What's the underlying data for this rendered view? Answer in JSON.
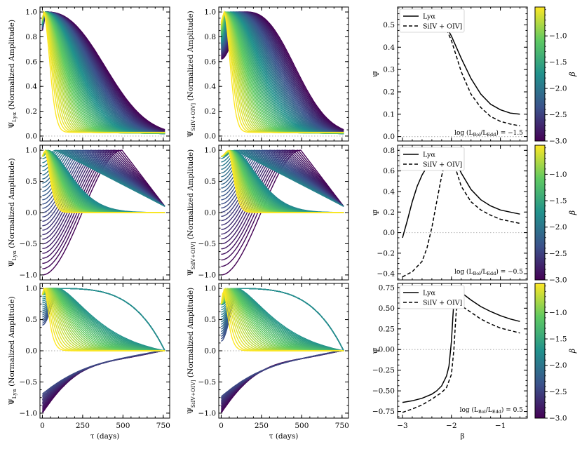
{
  "figure": {
    "description_free": true,
    "colormap": [
      "#440154",
      "#3b528b",
      "#21918c",
      "#5ec962",
      "#fde725"
    ]
  },
  "chart_data": [
    {
      "type": "line",
      "id": "lya_low",
      "ylabel": "Ψ_Lyα (Normalized Amplitude)",
      "ylabel_main": "Ψ",
      "ylabel_sub": "Lyα",
      "ylabel_rest": " (Normalized Amplitude)",
      "xlim": [
        -15,
        790
      ],
      "ylim": [
        -0.04,
        1.04
      ],
      "yticks": [
        0.0,
        0.2,
        0.4,
        0.6,
        0.8,
        1.0
      ],
      "yticklabels": [
        "0.0",
        "0.2",
        "0.4",
        "0.6",
        "0.8",
        "1.0"
      ],
      "xticks": [
        0,
        250,
        500,
        750
      ],
      "xticklabels": [
        "",
        "",
        "",
        ""
      ],
      "curve_model": "family_low",
      "n_curves": 60,
      "x_range_days": [
        0,
        760
      ]
    },
    {
      "type": "line",
      "id": "siiv_low",
      "ylabel": "Ψ_SiIV+OIV] (Normalized Amplitude)",
      "ylabel_main": "Ψ",
      "ylabel_sub": "SiIV+OIV]",
      "ylabel_rest": " (Normalized Amplitude)",
      "xlim": [
        -15,
        790
      ],
      "ylim": [
        -0.04,
        1.04
      ],
      "yticks": [
        0.0,
        0.2,
        0.4,
        0.6,
        0.8,
        1.0
      ],
      "yticklabels": [
        "0.0",
        "0.2",
        "0.4",
        "0.6",
        "0.8",
        "1.0"
      ],
      "xticks": [
        0,
        250,
        500,
        750
      ],
      "xticklabels": [
        "",
        "",
        "",
        ""
      ],
      "curve_model": "family_low_siiv",
      "n_curves": 60,
      "x_range_days": [
        0,
        760
      ]
    },
    {
      "type": "line",
      "id": "mean_low",
      "ylabel": "Ψ̄",
      "xlim": [
        -3.1,
        -0.45
      ],
      "ylim": [
        -0.02,
        0.58
      ],
      "yticks": [
        0.0,
        0.1,
        0.2,
        0.3,
        0.4,
        0.5
      ],
      "yticklabels": [
        "0.0",
        "0.1",
        "0.2",
        "0.3",
        "0.4",
        "0.5"
      ],
      "xticks": [
        -3,
        -2,
        -1
      ],
      "xticklabels": [
        "",
        "",
        ""
      ],
      "legend": [
        "Lyα",
        "SiIV + OIV]"
      ],
      "legend_loc": "top-left",
      "annotation": "log (L_Bol/L_Edd) = −1.5",
      "annot_main": "log (L",
      "annot_sub1": "Bol",
      "annot_mid": "/L",
      "annot_sub2": "Edd",
      "annot_end": ") = −1.5",
      "series": [
        {
          "name": "Lyα",
          "style": "solid",
          "x": [
            -3.0,
            -2.8,
            -2.6,
            -2.4,
            -2.2,
            -2.1,
            -2.0,
            -1.9,
            -1.8,
            -1.6,
            -1.4,
            -1.2,
            -1.0,
            -0.8,
            -0.6
          ],
          "y": [
            0.56,
            0.56,
            0.56,
            0.55,
            0.52,
            0.49,
            0.45,
            0.4,
            0.35,
            0.26,
            0.19,
            0.145,
            0.12,
            0.105,
            0.1
          ]
        },
        {
          "name": "SiIV + OIV]",
          "style": "dashed",
          "x": [
            -3.0,
            -2.8,
            -2.6,
            -2.4,
            -2.2,
            -2.1,
            -2.0,
            -1.9,
            -1.8,
            -1.6,
            -1.4,
            -1.2,
            -1.0,
            -0.8,
            -0.6
          ],
          "y": [
            0.565,
            0.56,
            0.555,
            0.54,
            0.51,
            0.48,
            0.43,
            0.36,
            0.29,
            0.19,
            0.13,
            0.09,
            0.068,
            0.056,
            0.048
          ]
        }
      ]
    },
    {
      "type": "line",
      "id": "lya_mid",
      "ylabel": "Ψ_Lyα (Normalized Amplitude)",
      "ylabel_main": "Ψ",
      "ylabel_sub": "Lyα",
      "ylabel_rest": " (Normalized Amplitude)",
      "xlim": [
        -15,
        790
      ],
      "ylim": [
        -1.08,
        1.08
      ],
      "yticks": [
        -1.0,
        -0.5,
        0.0,
        0.5,
        1.0
      ],
      "yticklabels": [
        "−1.0",
        "−0.5",
        "0.0",
        "0.5",
        "1.0"
      ],
      "xticks": [
        0,
        250,
        500,
        750
      ],
      "xticklabels": [
        "",
        "",
        "",
        ""
      ],
      "curve_model": "family_mid",
      "n_curves": 60,
      "x_range_days": [
        0,
        760
      ]
    },
    {
      "type": "line",
      "id": "siiv_mid",
      "ylabel": "Ψ_SiIV+OIV] (Normalized Amplitude)",
      "ylabel_main": "Ψ",
      "ylabel_sub": "SiIV+OIV]",
      "ylabel_rest": " (Normalized Amplitude)",
      "xlim": [
        -15,
        790
      ],
      "ylim": [
        -1.08,
        1.08
      ],
      "yticks": [
        -1.0,
        -0.5,
        0.0,
        0.5,
        1.0
      ],
      "yticklabels": [
        "−1.0",
        "−0.5",
        "0.0",
        "0.5",
        "1.0"
      ],
      "xticks": [
        0,
        250,
        500,
        750
      ],
      "xticklabels": [
        "",
        "",
        "",
        ""
      ],
      "curve_model": "family_mid_siiv",
      "n_curves": 60,
      "x_range_days": [
        0,
        760
      ]
    },
    {
      "type": "line",
      "id": "mean_mid",
      "ylabel": "Ψ̄",
      "xlim": [
        -3.1,
        -0.45
      ],
      "ylim": [
        -0.46,
        0.85
      ],
      "yticks": [
        -0.4,
        -0.2,
        0.0,
        0.2,
        0.4,
        0.6,
        0.8
      ],
      "yticklabels": [
        "−0.4",
        "−0.2",
        "0.0",
        "0.2",
        "0.4",
        "0.6",
        "0.8"
      ],
      "xticks": [
        -3,
        -2,
        -1
      ],
      "xticklabels": [
        "",
        "",
        ""
      ],
      "legend": [
        "Lyα",
        "SiIV + OIV]"
      ],
      "legend_loc": "top-left",
      "annotation": "log (L_Bol/L_Edd) = −0.5",
      "annot_main": "log (L",
      "annot_sub1": "Bol",
      "annot_mid": "/L",
      "annot_sub2": "Edd",
      "annot_end": ") = −0.5",
      "series": [
        {
          "name": "Lyα",
          "style": "solid",
          "x": [
            -3.0,
            -2.9,
            -2.8,
            -2.7,
            -2.6,
            -2.5,
            -2.4,
            -2.3,
            -2.2,
            -2.1,
            -2.0,
            -1.9,
            -1.8,
            -1.6,
            -1.4,
            -1.2,
            -1.0,
            -0.8,
            -0.6
          ],
          "y": [
            -0.05,
            0.12,
            0.3,
            0.45,
            0.56,
            0.64,
            0.7,
            0.74,
            0.78,
            0.8,
            0.77,
            0.68,
            0.58,
            0.42,
            0.32,
            0.26,
            0.22,
            0.2,
            0.18
          ]
        },
        {
          "name": "SiIV + OIV]",
          "style": "dashed",
          "x": [
            -3.0,
            -2.8,
            -2.6,
            -2.5,
            -2.4,
            -2.3,
            -2.2,
            -2.1,
            -2.05,
            -2.0,
            -1.95,
            -1.9,
            -1.8,
            -1.6,
            -1.4,
            -1.2,
            -1.0,
            -0.8,
            -0.6
          ],
          "y": [
            -0.43,
            -0.38,
            -0.28,
            -0.15,
            0.05,
            0.3,
            0.55,
            0.74,
            0.8,
            0.78,
            0.7,
            0.6,
            0.45,
            0.3,
            0.22,
            0.17,
            0.13,
            0.11,
            0.09
          ]
        }
      ]
    },
    {
      "type": "line",
      "id": "lya_high",
      "ylabel": "Ψ_Lyα (Normalized Amplitude)",
      "ylabel_main": "Ψ",
      "ylabel_sub": "Lyα",
      "ylabel_rest": " (Normalized Amplitude)",
      "xlabel": "τ (days)",
      "xlim": [
        -15,
        790
      ],
      "ylim": [
        -1.08,
        1.08
      ],
      "yticks": [
        -1.0,
        -0.5,
        0.0,
        0.5,
        1.0
      ],
      "yticklabels": [
        "−1.0",
        "−0.5",
        "0.0",
        "0.5",
        "1.0"
      ],
      "xticks": [
        0,
        250,
        500,
        750
      ],
      "xticklabels": [
        "0",
        "250",
        "500",
        "750"
      ],
      "curve_model": "family_high",
      "n_curves": 60,
      "x_range_days": [
        0,
        760
      ]
    },
    {
      "type": "line",
      "id": "siiv_high",
      "ylabel": "Ψ_SiIV+OIV] (Normalized Amplitude)",
      "ylabel_main": "Ψ",
      "ylabel_sub": "SiIV+OIV]",
      "ylabel_rest": " (Normalized Amplitude)",
      "xlabel": "τ (days)",
      "xlim": [
        -15,
        790
      ],
      "ylim": [
        -1.08,
        1.08
      ],
      "yticks": [
        -1.0,
        -0.5,
        0.0,
        0.5,
        1.0
      ],
      "yticklabels": [
        "−1.0",
        "−0.5",
        "0.0",
        "0.5",
        "1.0"
      ],
      "xticks": [
        0,
        250,
        500,
        750
      ],
      "xticklabels": [
        "0",
        "250",
        "500",
        "750"
      ],
      "curve_model": "family_high_siiv",
      "n_curves": 60,
      "x_range_days": [
        0,
        760
      ]
    },
    {
      "type": "line",
      "id": "mean_high",
      "ylabel": "Ψ̄",
      "xlabel": "β",
      "xlim": [
        -3.1,
        -0.45
      ],
      "ylim": [
        -0.83,
        0.8
      ],
      "yticks": [
        -0.75,
        -0.5,
        -0.25,
        0.0,
        0.25,
        0.5,
        0.75
      ],
      "yticklabels": [
        "−0.75",
        "−0.50",
        "−0.25",
        "0.00",
        "0.25",
        "0.50",
        "0.75"
      ],
      "xticks": [
        -3,
        -2,
        -1
      ],
      "xticklabels": [
        "−3",
        "−2",
        "−1"
      ],
      "legend": [
        "Lyα",
        "SiIV + OIV]"
      ],
      "legend_loc": "top-left",
      "annotation": "log (L_Bol/L_Edd) = 0.5",
      "annot_main": "log (L",
      "annot_sub1": "Bol",
      "annot_mid": "/L",
      "annot_sub2": "Edd",
      "annot_end": ") = 0.5",
      "series": [
        {
          "name": "Lyα",
          "style": "solid",
          "x": [
            -3.0,
            -2.8,
            -2.6,
            -2.4,
            -2.3,
            -2.2,
            -2.1,
            -2.05,
            -2.0,
            -1.97,
            -1.95,
            -1.9,
            -1.8,
            -1.6,
            -1.4,
            -1.2,
            -1.0,
            -0.8,
            -0.6
          ],
          "y": [
            -0.64,
            -0.62,
            -0.59,
            -0.54,
            -0.5,
            -0.44,
            -0.32,
            -0.2,
            0.1,
            0.4,
            0.58,
            0.7,
            0.69,
            0.6,
            0.52,
            0.46,
            0.41,
            0.37,
            0.34
          ]
        },
        {
          "name": "SiIV + OIV]",
          "style": "dashed",
          "x": [
            -3.0,
            -2.8,
            -2.6,
            -2.4,
            -2.2,
            -2.1,
            -2.0,
            -1.95,
            -1.92,
            -1.9,
            -1.85,
            -1.8,
            -1.6,
            -1.4,
            -1.2,
            -1.0,
            -0.8,
            -0.6
          ],
          "y": [
            -0.76,
            -0.72,
            -0.67,
            -0.6,
            -0.52,
            -0.46,
            -0.3,
            0.0,
            0.3,
            0.48,
            0.54,
            0.53,
            0.45,
            0.37,
            0.31,
            0.26,
            0.23,
            0.2
          ]
        }
      ]
    }
  ],
  "colorbar": {
    "label": "β",
    "range": [
      -3.0,
      -0.45
    ],
    "ticks": [
      -3.0,
      -2.5,
      -2.0,
      -1.5,
      -1.0
    ],
    "ticklabels": [
      "−3.0",
      "−2.5",
      "−2.0",
      "−1.5",
      "−1.0"
    ]
  }
}
